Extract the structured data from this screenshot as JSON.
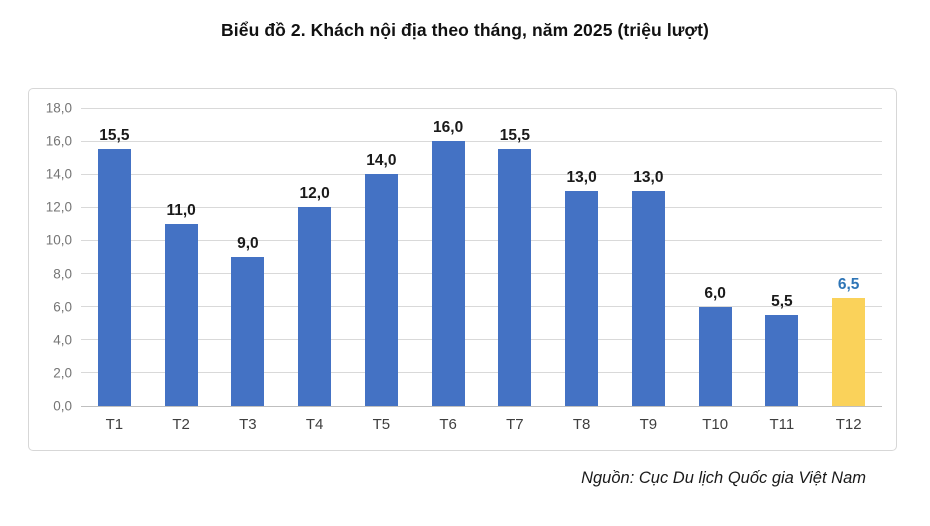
{
  "page": {
    "title": "Biểu đồ 2. Khách nội địa theo tháng, năm 2025 (triệu lượt)",
    "source": "Nguồn: Cục Du lịch Quốc gia Việt Nam"
  },
  "chart_data": {
    "type": "bar",
    "title": "Biểu đồ 2. Khách nội địa theo tháng, năm 2025 (triệu lượt)",
    "categories": [
      "T1",
      "T2",
      "T3",
      "T4",
      "T5",
      "T6",
      "T7",
      "T8",
      "T9",
      "T10",
      "T11",
      "T12"
    ],
    "values": [
      15.5,
      11.0,
      9.0,
      12.0,
      14.0,
      16.0,
      15.5,
      13.0,
      13.0,
      6.0,
      5.5,
      6.5
    ],
    "value_labels": [
      "15,5",
      "11,0",
      "9,0",
      "12,0",
      "14,0",
      "16,0",
      "15,5",
      "13,0",
      "13,0",
      "6,0",
      "5,5",
      "6,5"
    ],
    "xlabel": "",
    "ylabel": "",
    "ylim": [
      0,
      18
    ],
    "ytick_step": 2,
    "ytick_labels": [
      "18,0",
      "16,0",
      "14,0",
      "12,0",
      "10,0",
      "8,0",
      "6,0",
      "4,0",
      "2,0",
      "0,0"
    ],
    "grid": true,
    "legend": "none",
    "bar_color": "#4472c4",
    "highlight_index": 11,
    "highlight_color": "#fad25a",
    "highlight_label_color": "#2e75b6",
    "label_color": "#1a1a1a",
    "annotation": "Nguồn: Cục Du lịch Quốc gia Việt Nam"
  }
}
